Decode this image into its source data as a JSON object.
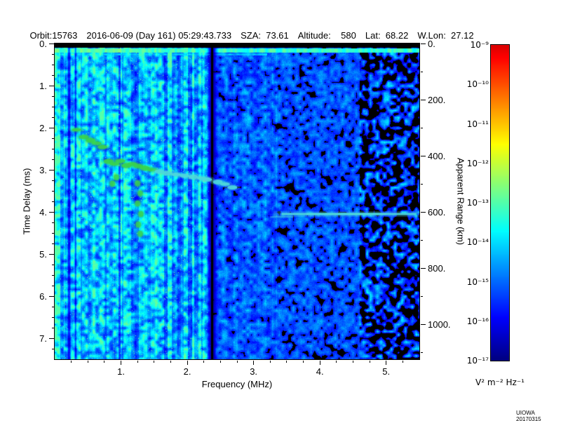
{
  "header": {
    "orbit": "Orbit:15763",
    "datetime": "2016-06-09 (Day 161) 05:29:43.733",
    "sza": "SZA:  73.61",
    "altitude": "Altitude:    580",
    "lat": "Lat:  68.22",
    "wlon": "W.Lon:  27.12"
  },
  "footer": {
    "credit": "UIOWA 20170315"
  },
  "chart_data": {
    "type": "heatmap",
    "xlabel": "Frequency (MHz)",
    "ylabel_left": "Time Delay (ms)",
    "ylabel_right": "Apparent Range (km)",
    "x_range_mhz": [
      0.0,
      5.5
    ],
    "y_range_ms": [
      0.0,
      7.5
    ],
    "right_axis_range_km": [
      0,
      1125
    ],
    "x_tick_values": [
      1,
      2,
      3,
      4,
      5
    ],
    "x_tick_labels": [
      "1.",
      "2.",
      "3.",
      "4.",
      "5."
    ],
    "y_tick_values": [
      0,
      1,
      2,
      3,
      4,
      5,
      6,
      7
    ],
    "y_tick_labels": [
      "0.",
      "1.",
      "2.",
      "3.",
      "4.",
      "5.",
      "6.",
      "7."
    ],
    "right_tick_values": [
      0,
      200,
      400,
      600,
      800,
      1000
    ],
    "right_tick_labels": [
      "0.",
      "200.",
      "400.",
      "600.",
      "800.",
      "1000."
    ],
    "grid": false,
    "colorbar": {
      "scale": "log",
      "min": 1e-17,
      "max": 1e-09,
      "tick_labels": [
        "10⁻⁹",
        "10⁻¹⁰",
        "10⁻¹¹",
        "10⁻¹²",
        "10⁻¹³",
        "10⁻¹⁴",
        "10⁻¹⁵",
        "10⁻¹⁶",
        "10⁻¹⁷"
      ],
      "unit": "V² m⁻² Hz⁻¹",
      "top_color": "#dd0000",
      "bottom_color": "#000080"
    },
    "features": {
      "surface_return_band_ms": 0.18,
      "interference_null_mhz": 2.37,
      "ionosphere_echo_trace_mhz_ms": [
        [
          0.33,
          2.05
        ],
        [
          0.44,
          2.22
        ],
        [
          0.54,
          2.3
        ],
        [
          0.63,
          2.37
        ],
        [
          0.72,
          2.46
        ],
        [
          0.81,
          2.8
        ],
        [
          0.9,
          2.86
        ],
        [
          0.99,
          2.79
        ],
        [
          1.08,
          2.9
        ],
        [
          1.17,
          2.86
        ],
        [
          1.26,
          2.91
        ],
        [
          1.36,
          2.96
        ],
        [
          1.47,
          3.0
        ],
        [
          1.58,
          3.04
        ],
        [
          1.7,
          3.08
        ],
        [
          1.83,
          3.11
        ],
        [
          1.96,
          3.14
        ],
        [
          2.09,
          3.17
        ],
        [
          2.22,
          3.2
        ],
        [
          2.3,
          3.23
        ],
        [
          2.46,
          3.29
        ],
        [
          2.57,
          3.34
        ],
        [
          2.68,
          3.42
        ]
      ],
      "plasma_cusp_blobs_mhz_ms": [
        [
          0.93,
          3.18
        ],
        [
          0.87,
          3.33
        ],
        [
          1.25,
          3.32
        ],
        [
          1.29,
          3.56
        ],
        [
          1.25,
          3.8
        ],
        [
          1.3,
          4.05
        ],
        [
          1.26,
          4.3
        ],
        [
          1.29,
          4.52
        ]
      ],
      "ground_echo_line": {
        "delay_ms": 4.05,
        "f_start_mhz": 3.3,
        "f_end_mhz": 5.5
      },
      "trace_color": "#3bd24a",
      "echo_color": "#4fd9d9"
    }
  }
}
